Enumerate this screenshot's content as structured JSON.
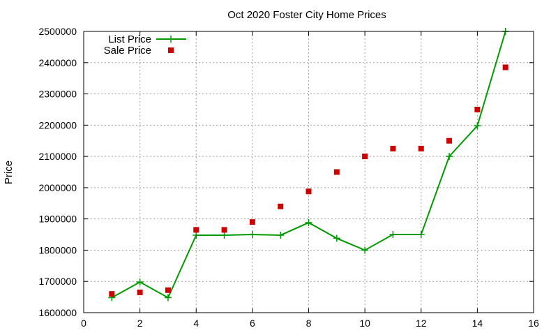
{
  "chart_data": {
    "type": "line",
    "title": "Oct 2020 Foster City Home Prices",
    "xlabel": "",
    "ylabel": "Price",
    "xlim": [
      0,
      16
    ],
    "ylim": [
      1600000,
      2500000
    ],
    "xticks": [
      0,
      2,
      4,
      6,
      8,
      10,
      12,
      14,
      16
    ],
    "yticks": [
      1600000,
      1700000,
      1800000,
      1900000,
      2000000,
      2100000,
      2200000,
      2300000,
      2400000,
      2500000
    ],
    "grid": true,
    "legend_position": "top-left",
    "series": [
      {
        "name": "List Price",
        "style": "line-plus",
        "color": "#009900",
        "x": [
          1,
          2,
          3,
          4,
          5,
          6,
          7,
          8,
          9,
          10,
          11,
          12,
          13,
          14,
          15
        ],
        "y": [
          1648000,
          1698000,
          1648000,
          1848000,
          1848000,
          1850000,
          1848000,
          1888000,
          1838000,
          1800000,
          1850000,
          1850000,
          2100000,
          2198000,
          2500000
        ]
      },
      {
        "name": "Sale Price",
        "style": "square",
        "color": "#cc0000",
        "x": [
          1,
          2,
          3,
          4,
          5,
          6,
          7,
          8,
          9,
          10,
          11,
          12,
          13,
          14,
          15
        ],
        "y": [
          1660000,
          1665000,
          1672000,
          1865000,
          1865000,
          1890000,
          1940000,
          1988000,
          2050000,
          2100000,
          2125000,
          2125000,
          2150000,
          2250000,
          2385000
        ]
      }
    ]
  }
}
